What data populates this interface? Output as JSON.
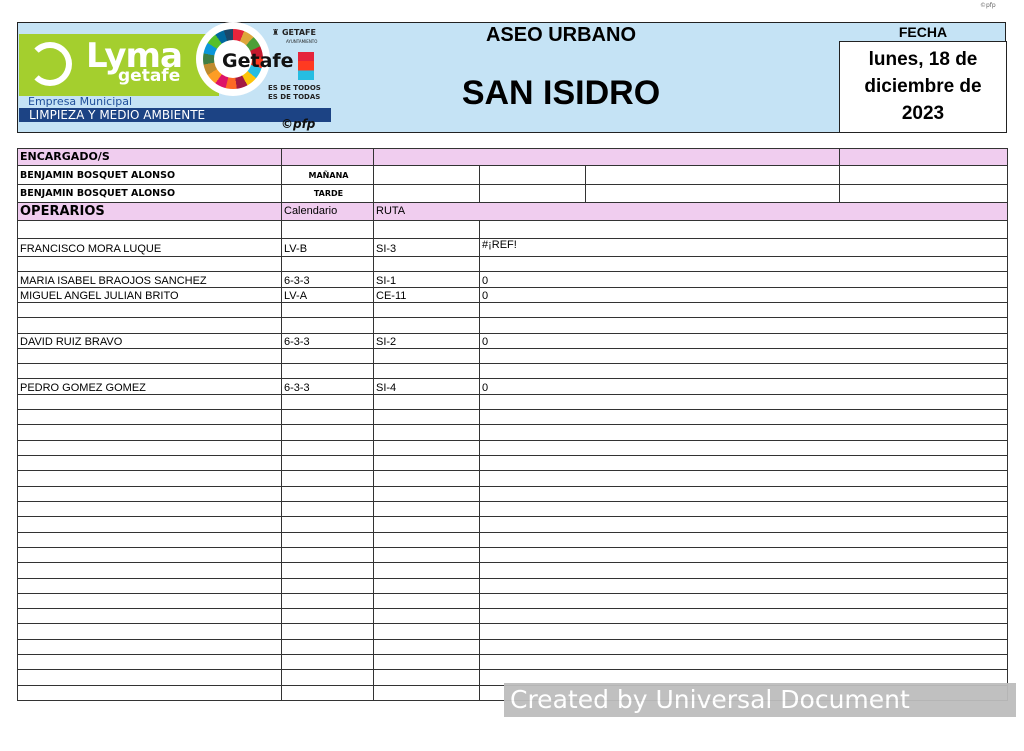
{
  "copyright_top": "©pfp",
  "logo": {
    "brand": "Lyma",
    "brand_sub": "getafe",
    "empresa": "Empresa Municipal",
    "limpieza": "LIMPIEZA Y MEDIO AMBIENTE",
    "getafe": "Getafe",
    "ayuntamiento": "GETAFE",
    "ayuntamiento_sub": "AYUNTAMIENTO",
    "slogan_1": "ES DE TODOS",
    "slogan_2": "ES DE TODAS",
    "pfp": "©pfp"
  },
  "header": {
    "service": "ASEO URBANO",
    "zone": "SAN ISIDRO",
    "fecha_label": "FECHA",
    "fecha_lines": [
      "lunes, 18 de",
      "diciembre de",
      "2023"
    ]
  },
  "encargados": {
    "label": "ENCARGADO/S",
    "rows": [
      {
        "name": "BENJAMIN BOSQUET ALONSO",
        "turno": "MAÑANA"
      },
      {
        "name": "BENJAMIN BOSQUET ALONSO",
        "turno": "TARDE"
      }
    ]
  },
  "operarios": {
    "label": "OPERARIOS",
    "col_calendario": "Calendario",
    "col_ruta": "RUTA",
    "rows": [
      {
        "name": "",
        "cal": "",
        "ruta": "",
        "val": ""
      },
      {
        "name": "FRANCISCO MORA LUQUE",
        "cal": "LV-B",
        "ruta": "SI-3",
        "val": "#¡REF!"
      },
      {
        "name": "",
        "cal": "",
        "ruta": "",
        "val": ""
      },
      {
        "name": "MARIA ISABEL BRAOJOS SANCHEZ",
        "cal": "6-3-3",
        "ruta": "SI-1",
        "val": "0"
      },
      {
        "name": "MIGUEL ANGEL JULIAN BRITO",
        "cal": "LV-A",
        "ruta": "CE-11",
        "val": "0"
      },
      {
        "name": "",
        "cal": "",
        "ruta": "",
        "val": ""
      },
      {
        "name": "",
        "cal": "",
        "ruta": "",
        "val": ""
      },
      {
        "name": "DAVID RUIZ BRAVO",
        "cal": "6-3-3",
        "ruta": "SI-2",
        "val": "0"
      },
      {
        "name": "",
        "cal": "",
        "ruta": "",
        "val": ""
      },
      {
        "name": "",
        "cal": "",
        "ruta": "",
        "val": ""
      },
      {
        "name": "PEDRO GOMEZ GOMEZ",
        "cal": "6-3-3",
        "ruta": "SI-4",
        "val": "0"
      }
    ]
  },
  "watermark": "Created by Universal Document Converter"
}
